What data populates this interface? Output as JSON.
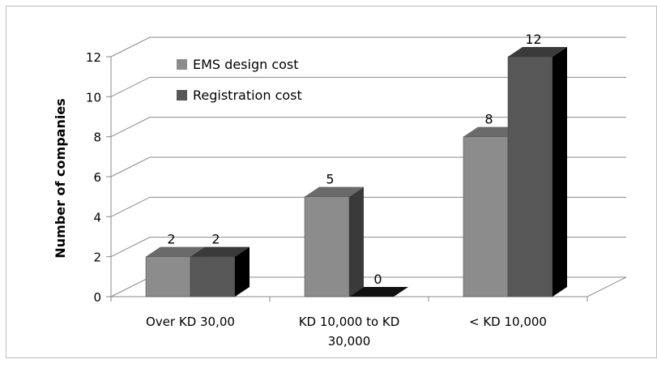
{
  "chart_data": {
    "type": "bar",
    "categories": [
      "Over KD 30,00",
      "KD 10,000 to KD 30,000",
      "< KD 10,000"
    ],
    "category_lines": [
      [
        "Over KD 30,00"
      ],
      [
        "KD 10,000 to KD",
        "30,000"
      ],
      [
        "< KD 10,000"
      ]
    ],
    "series": [
      {
        "name": "EMS design cost",
        "values": [
          2,
          5,
          8
        ],
        "color": "#8c8c8c"
      },
      {
        "name": "Registration cost",
        "values": [
          2,
          0,
          12
        ],
        "color": "#575757"
      }
    ],
    "ylabel": "Number of companies",
    "ylim": [
      0,
      12
    ],
    "yticks": [
      0,
      2,
      4,
      6,
      8,
      10,
      12
    ],
    "grid": true,
    "legend_position": "top-left",
    "three_d": true
  }
}
